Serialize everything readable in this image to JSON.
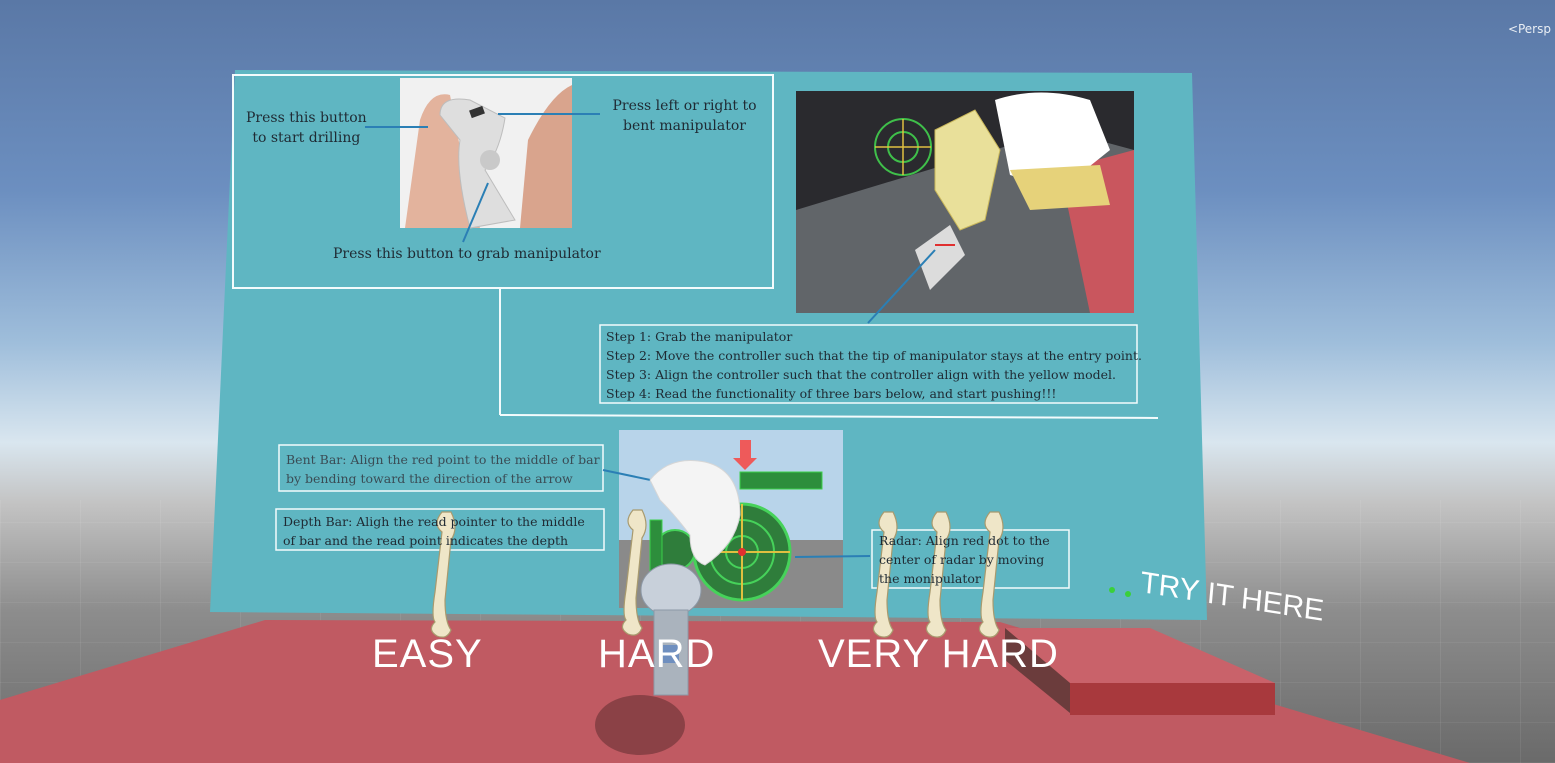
{
  "scene": {
    "perspective_label": "<Persp",
    "colors": {
      "board": "#5fb6c2",
      "floor": "#c05a62",
      "sky": "#6c8fc0"
    }
  },
  "board": {
    "controller_callout": {
      "start_drilling": [
        "Press this button",
        "to start drilling"
      ],
      "bent_manipulator": [
        "Press left or right to",
        "bent manipulator"
      ],
      "grab_manipulator": "Press this button to grab manipulator"
    },
    "steps": [
      "Step 1: Grab the manipulator",
      "Step 2: Move the controller such that the tip of manipulator stays at the entry point.",
      "Step 3: Align the controller such that the controller align with the yellow model.",
      "Step 4: Read the functionality of three bars below, and start pushing!!!"
    ],
    "bent_bar": [
      "Bent Bar: Align the red point to the middle of bar",
      "by bending toward the direction of the arrow"
    ],
    "depth_bar": [
      "Depth Bar: Aligh the read pointer to the middle",
      "of bar and the read point indicates the depth"
    ],
    "radar": [
      "Radar: Align red dot to the",
      "center of radar by moving",
      "the monipulator"
    ]
  },
  "floor": {
    "levels": [
      "EASY",
      "HARD",
      "VERY HARD"
    ],
    "try_it_here": "TRY IT HERE"
  }
}
